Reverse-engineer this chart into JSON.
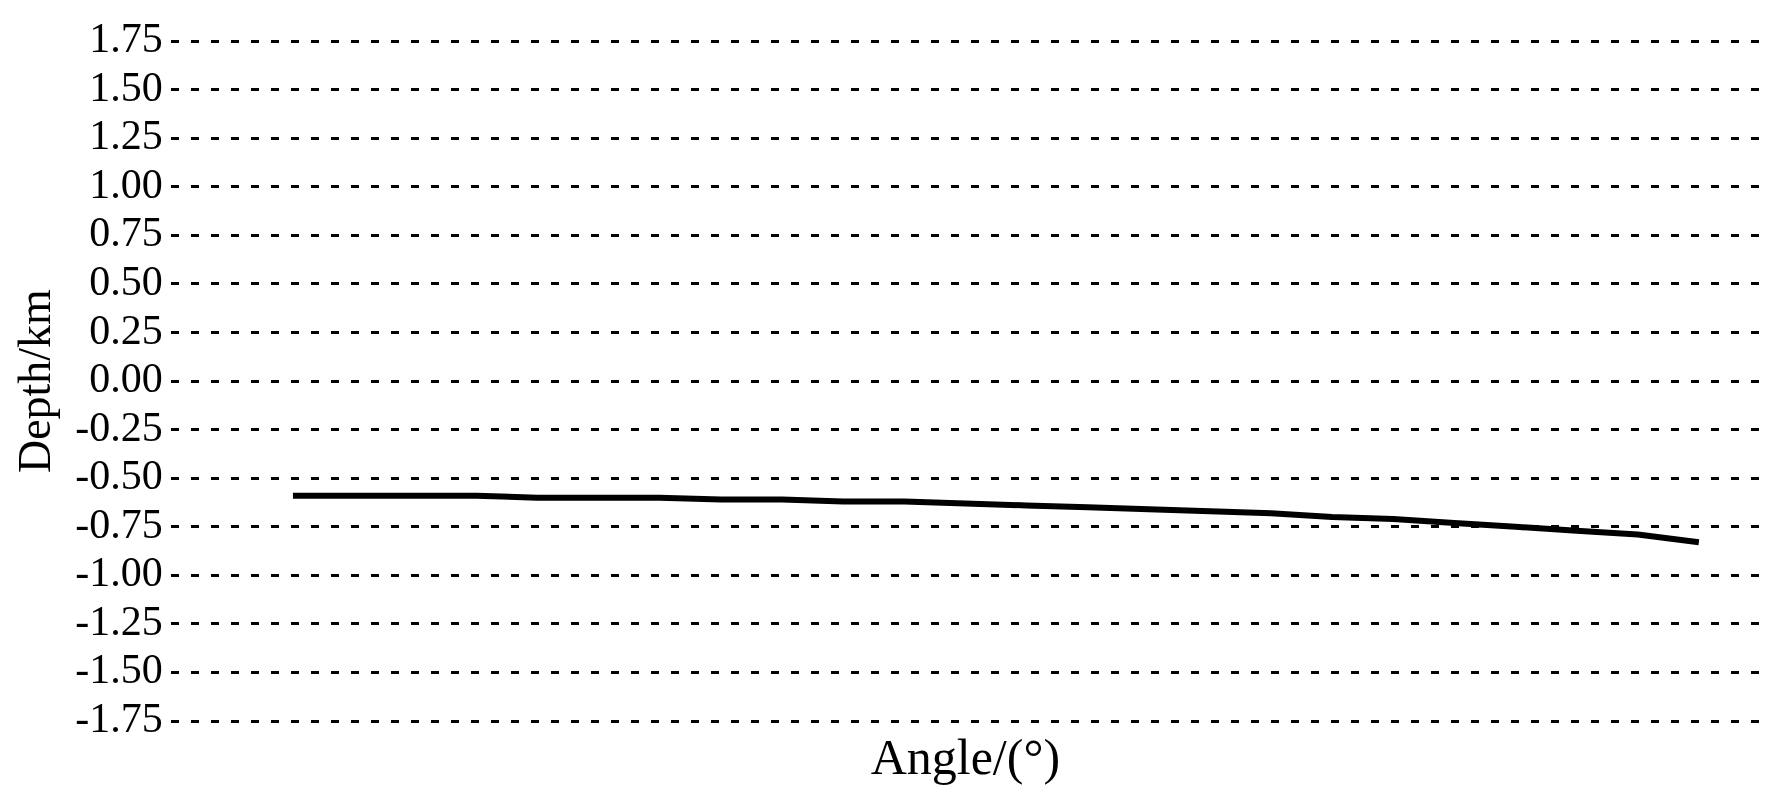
{
  "chart_data": {
    "type": "line",
    "xlabel": "Angle/(°)",
    "ylabel": "Depth/km",
    "categories": [
      null,
      null,
      null,
      null,
      null,
      null,
      null,
      null,
      null,
      null,
      null,
      null,
      null,
      null,
      null,
      null,
      null,
      null,
      null,
      null,
      null,
      null,
      null,
      null,
      null,
      null,
      null
    ],
    "series": [
      {
        "color": "#000000",
        "values": [
          null,
          null,
          -0.59,
          -0.59,
          -0.59,
          -0.59,
          -0.6,
          -0.6,
          -0.6,
          -0.61,
          -0.61,
          -0.62,
          -0.62,
          -0.63,
          -0.64,
          -0.65,
          -0.66,
          -0.67,
          -0.68,
          -0.7,
          -0.71,
          -0.73,
          -0.75,
          -0.77,
          -0.79,
          -0.83,
          null
        ]
      }
    ],
    "ylim": [
      -1.75,
      1.75
    ],
    "yticks": [
      {
        "value": -1.75,
        "label": "-1.75"
      },
      {
        "value": -1.5,
        "label": "-1.50"
      },
      {
        "value": -1.25,
        "label": "-1.25"
      },
      {
        "value": -1,
        "label": "-1.00"
      },
      {
        "value": -0.75,
        "label": "-0.75"
      },
      {
        "value": -0.5,
        "label": "-0.50"
      },
      {
        "value": -0.25,
        "label": "-0.25"
      },
      {
        "value": 0,
        "label": "0.00"
      },
      {
        "value": 0.25,
        "label": "0.25"
      },
      {
        "value": 0.5,
        "label": "0.50"
      },
      {
        "value": 0.75,
        "label": "0.75"
      },
      {
        "value": 1,
        "label": "1.00"
      },
      {
        "value": 1.25,
        "label": "1.25"
      },
      {
        "value": 1.5,
        "label": "1.50"
      },
      {
        "value": 1.75,
        "label": "1.75"
      }
    ],
    "grid": "y",
    "tick_labels": "y",
    "legend": false,
    "marker": "none",
    "line_style": "solid"
  }
}
